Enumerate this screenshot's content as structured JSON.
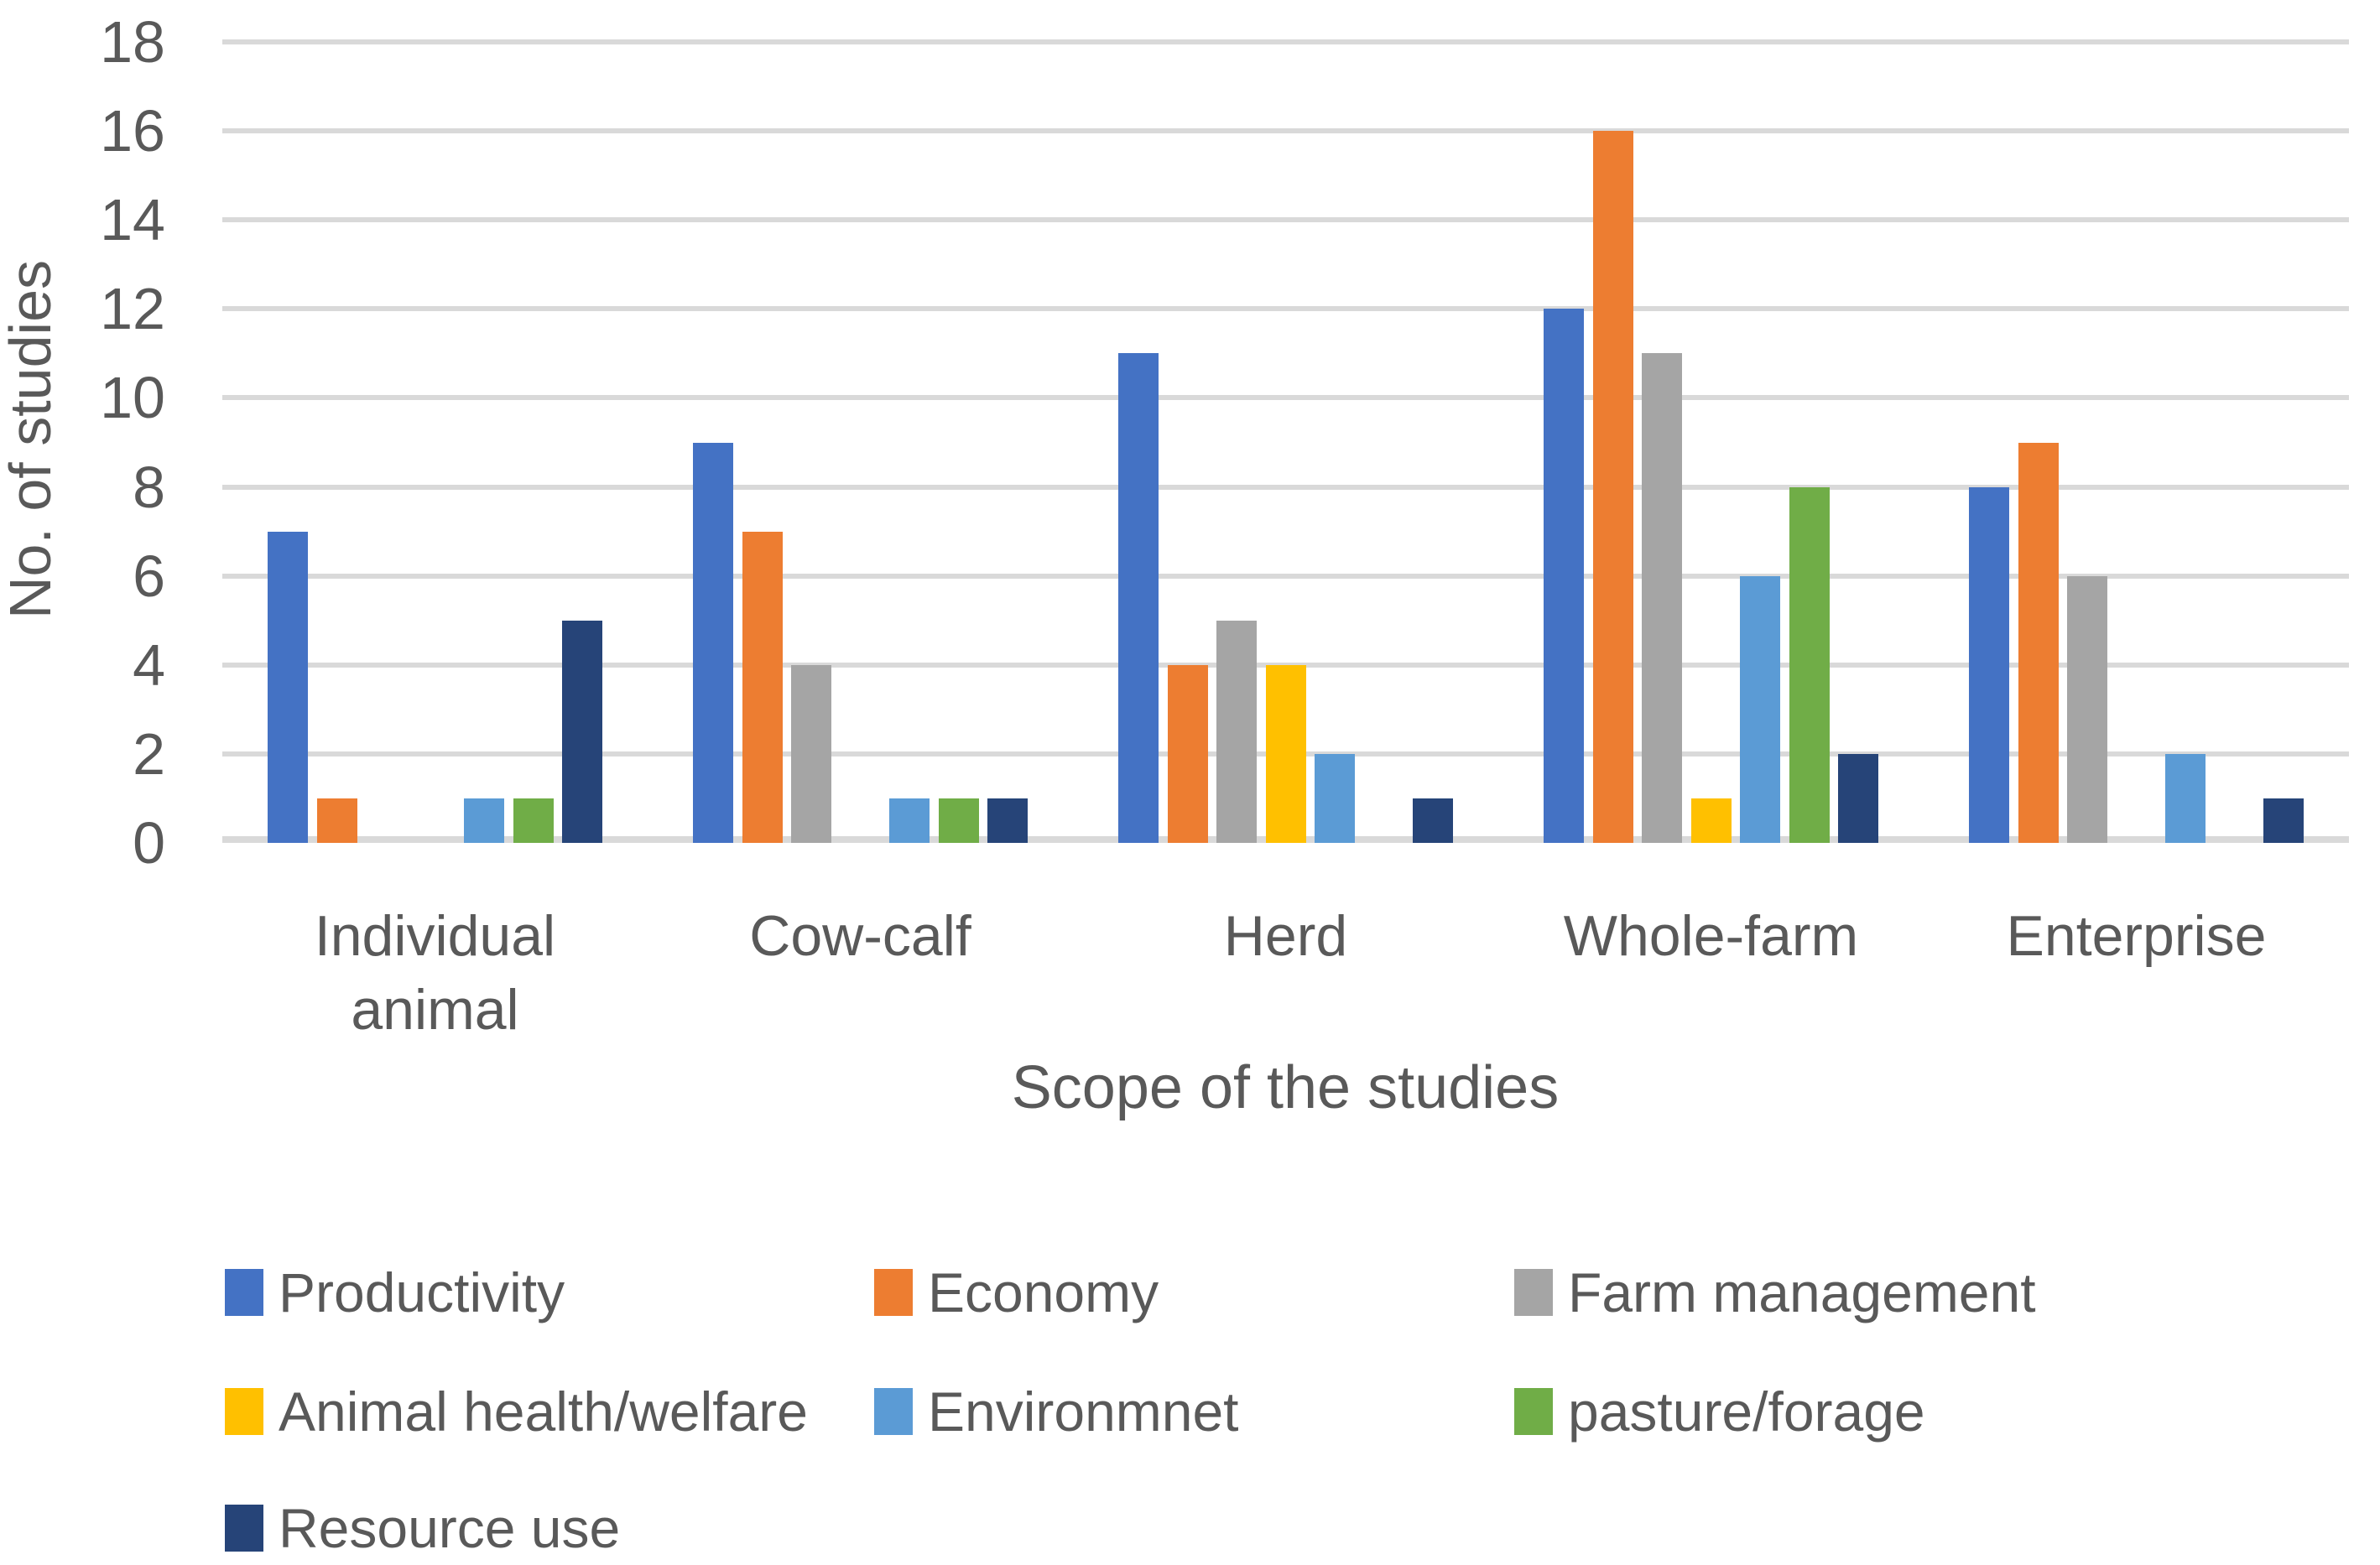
{
  "colors": {
    "text": "#595959",
    "gridline": "#D9D9D9",
    "background": "#FFFFFF"
  },
  "chart_data": {
    "type": "bar",
    "categories": [
      "Individual animal",
      "Cow-calf",
      "Herd",
      "Whole-farm",
      "Enterprise"
    ],
    "series": [
      {
        "name": "Productivity",
        "color": "#4472C4",
        "values": [
          7,
          9,
          11,
          12,
          8
        ]
      },
      {
        "name": "Economy",
        "color": "#ED7D31",
        "values": [
          1,
          7,
          4,
          16,
          9
        ]
      },
      {
        "name": "Farm management",
        "color": "#A5A5A5",
        "values": [
          0,
          4,
          5,
          11,
          6
        ]
      },
      {
        "name": "Animal health/welfare",
        "color": "#FFC000",
        "values": [
          0,
          0,
          4,
          1,
          0
        ]
      },
      {
        "name": "Environmnet",
        "color": "#5B9BD5",
        "values": [
          1,
          1,
          2,
          6,
          2
        ]
      },
      {
        "name": "pasture/forage",
        "color": "#70AD47",
        "values": [
          1,
          1,
          0,
          8,
          0
        ]
      },
      {
        "name": "Resource use",
        "color": "#264478",
        "values": [
          5,
          1,
          1,
          2,
          1
        ]
      }
    ],
    "xlabel": "Scope of the studies",
    "ylabel": "No. of studies",
    "ylim": [
      0,
      18
    ],
    "yticks": [
      0,
      2,
      4,
      6,
      8,
      10,
      12,
      14,
      16,
      18
    ],
    "grid": "horizontal",
    "legend_position": "bottom",
    "legend_rows": [
      [
        0,
        1,
        2
      ],
      [
        3,
        4,
        5
      ],
      [
        6
      ]
    ]
  }
}
